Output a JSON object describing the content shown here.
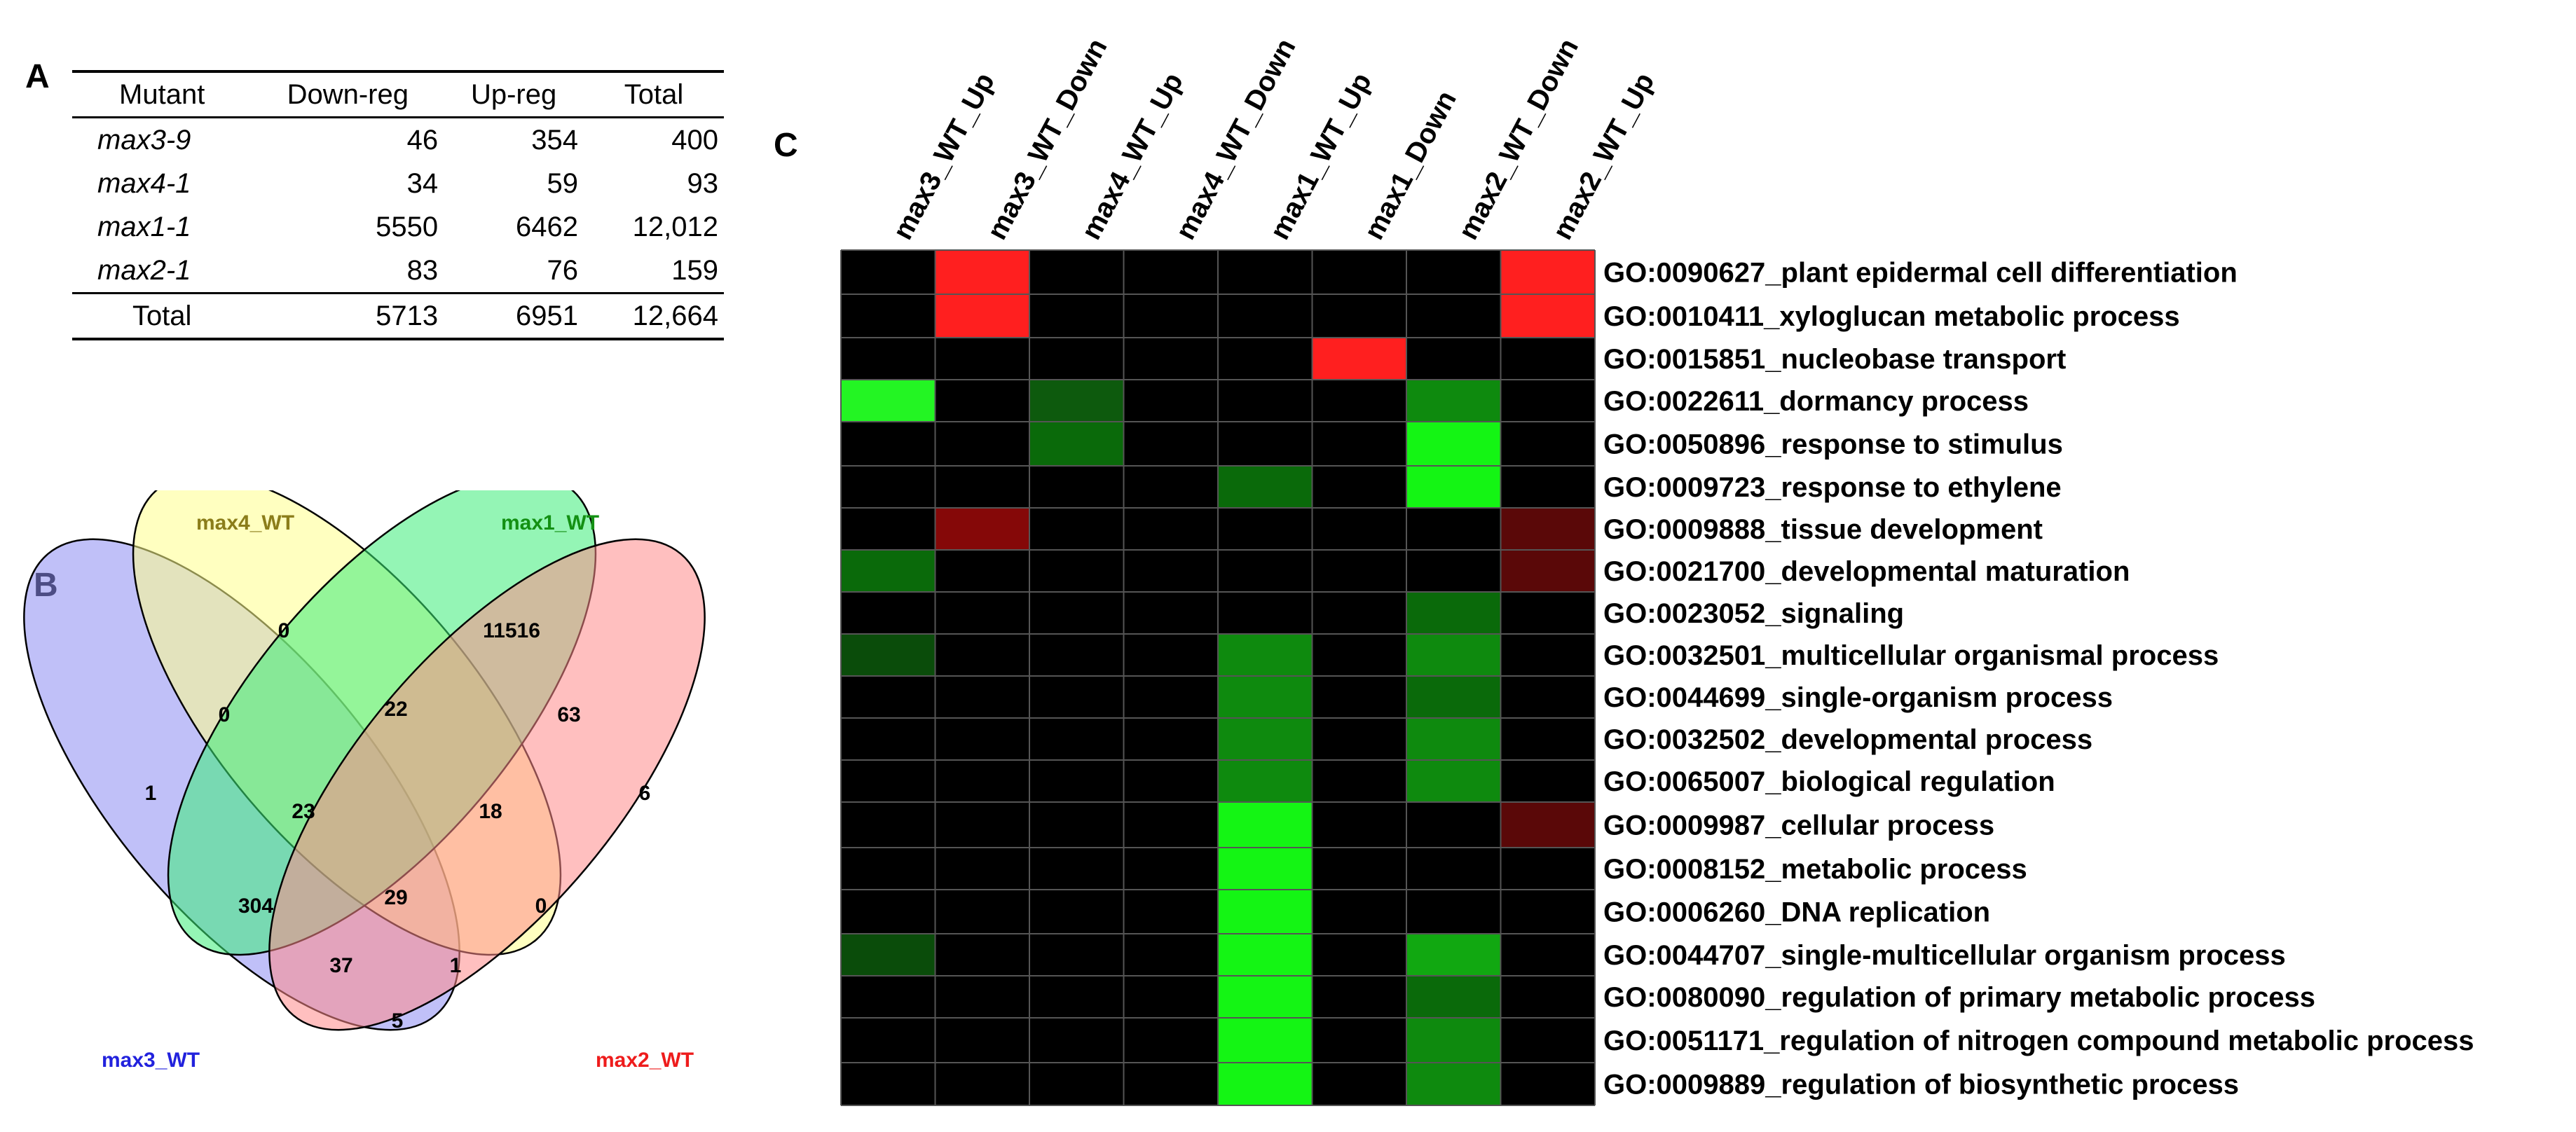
{
  "panels": {
    "a": "A",
    "b": "B",
    "c": "C"
  },
  "table": {
    "headers": [
      "Mutant",
      "Down-reg",
      "Up-reg",
      "Total"
    ],
    "rows": [
      {
        "mutant": "max3-9",
        "down": "46",
        "up": "354",
        "total": "400"
      },
      {
        "mutant": "max4-1",
        "down": "34",
        "up": "59",
        "total": "93"
      },
      {
        "mutant": "max1-1",
        "down": "5550",
        "up": "6462",
        "total": "12,012"
      },
      {
        "mutant": "max2-1",
        "down": "83",
        "up": "76",
        "total": "159"
      }
    ],
    "footer": {
      "label": "Total",
      "down": "5713",
      "up": "6951",
      "total": "12,664"
    }
  },
  "venn": {
    "sets": [
      {
        "name": "max3_WT",
        "color": "#2222dd",
        "fill": "#8c8cf2"
      },
      {
        "name": "max4_WT",
        "color": "#8b7d1a",
        "fill": "#ffff8c"
      },
      {
        "name": "max1_WT",
        "color": "#139013",
        "fill": "#3cec78"
      },
      {
        "name": "max2_WT",
        "color": "#ee1c1c",
        "fill": "#ff8a8a"
      }
    ],
    "region_counts": {
      "only_max3": "1",
      "only_max4": "0",
      "only_max1": "11516",
      "only_max2": "6",
      "max3_max4": "0",
      "max4_max1": "22",
      "max1_max2": "63",
      "max3_max4_max1": "23",
      "max4_max1_max2": "18",
      "max3_max1": "304",
      "all_four": "29",
      "max4_max2": "0",
      "max3_max1_max2": "37",
      "max3_max4_max2": "1",
      "max3_max2": "5"
    }
  },
  "chart_data": {
    "type": "heatmap",
    "columns": [
      "max3_WT_Up",
      "max3_WT_Down",
      "max4_WT_Up",
      "max4_WT_Down",
      "max1_WT_Up",
      "max1_Down",
      "max2_WT_Down",
      "max2_WT_Up"
    ],
    "rows": [
      "GO:0090627_plant epidermal cell differentiation",
      "GO:0010411_xyloglucan metabolic process",
      "GO:0015851_nucleobase transport",
      "GO:0022611_dormancy process",
      "GO:0050896_response to stimulus",
      "GO:0009723_response to ethylene",
      "GO:0009888_tissue development",
      "GO:0021700_developmental maturation",
      "GO:0023052_signaling",
      "GO:0032501_multicellular organismal process",
      "GO:0044699_single-organism process",
      "GO:0032502_developmental process",
      "GO:0065007_biological regulation",
      "GO:0009987_cellular process",
      "GO:0008152_metabolic process",
      "GO:0006260_DNA replication",
      "GO:0044707_single-multicellular organism process",
      "GO:0080090_regulation of primary metabolic process",
      "GO:0051171_regulation of nitrogen compound metabolic process",
      "GO:0009889_regulation of biosynthetic process"
    ],
    "cell_colors": {
      "0,1": "#ff1f1f",
      "0,7": "#ff1f1f",
      "1,1": "#ff1f1f",
      "1,7": "#ff1f1f",
      "2,5": "#ff1f1f",
      "3,0": "#23f523",
      "3,2": "#0d5a0d",
      "3,6": "#0e8a0e",
      "4,2": "#0a6a0a",
      "4,6": "#14f514",
      "5,4": "#0a6a0a",
      "5,6": "#14f514",
      "6,1": "#850808",
      "6,7": "#5a0808",
      "7,0": "#0a6a0a",
      "7,7": "#5a0808",
      "8,6": "#0a6a0a",
      "9,0": "#0a4c0a",
      "9,4": "#0e8a0e",
      "9,6": "#0e8a0e",
      "10,4": "#0e8a0e",
      "10,6": "#0a6a0a",
      "11,4": "#0e8a0e",
      "11,6": "#0e8a0e",
      "12,4": "#0e8a0e",
      "12,6": "#0e8a0e",
      "13,4": "#14f514",
      "13,7": "#5a0808",
      "14,4": "#14f514",
      "15,4": "#14f514",
      "16,0": "#0a4c0a",
      "16,4": "#14f514",
      "16,6": "#11a811",
      "17,4": "#14f514",
      "17,6": "#0a6a0a",
      "18,4": "#14f514",
      "18,6": "#0e8a0e",
      "19,4": "#14f514",
      "19,6": "#0e8a0e"
    },
    "background": "#000000",
    "grid_line": "#555555"
  }
}
